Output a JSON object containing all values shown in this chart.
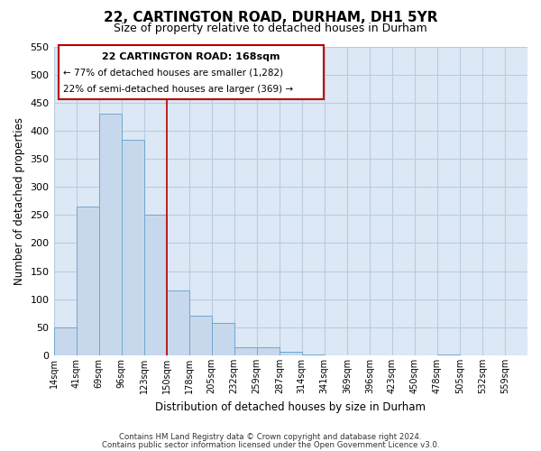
{
  "title": "22, CARTINGTON ROAD, DURHAM, DH1 5YR",
  "subtitle": "Size of property relative to detached houses in Durham",
  "xlabel": "Distribution of detached houses by size in Durham",
  "ylabel": "Number of detached properties",
  "bar_color": "#c8d8ec",
  "bar_edge_color": "#6fa8d0",
  "background_color": "#ffffff",
  "plot_bg_color": "#dce8f5",
  "grid_color": "#b8cce0",
  "bin_labels": [
    "14sqm",
    "41sqm",
    "69sqm",
    "96sqm",
    "123sqm",
    "150sqm",
    "178sqm",
    "205sqm",
    "232sqm",
    "259sqm",
    "287sqm",
    "314sqm",
    "341sqm",
    "369sqm",
    "396sqm",
    "423sqm",
    "450sqm",
    "478sqm",
    "505sqm",
    "532sqm",
    "559sqm"
  ],
  "bar_heights": [
    50,
    265,
    430,
    383,
    250,
    116,
    70,
    58,
    15,
    14,
    6,
    1,
    0,
    0,
    0,
    0,
    0,
    1,
    0,
    0,
    0
  ],
  "ylim": [
    0,
    550
  ],
  "yticks": [
    0,
    50,
    100,
    150,
    200,
    250,
    300,
    350,
    400,
    450,
    500,
    550
  ],
  "property_line_bin": 5,
  "annotation_line1": "22 CARTINGTON ROAD: 168sqm",
  "annotation_line2": "← 77% of detached houses are smaller (1,282)",
  "annotation_line3": "22% of semi-detached houses are larger (369) →",
  "annotation_box_color": "#ffffff",
  "annotation_box_edge_color": "#bb0000",
  "footer_line1": "Contains HM Land Registry data © Crown copyright and database right 2024.",
  "footer_line2": "Contains public sector information licensed under the Open Government Licence v3.0."
}
